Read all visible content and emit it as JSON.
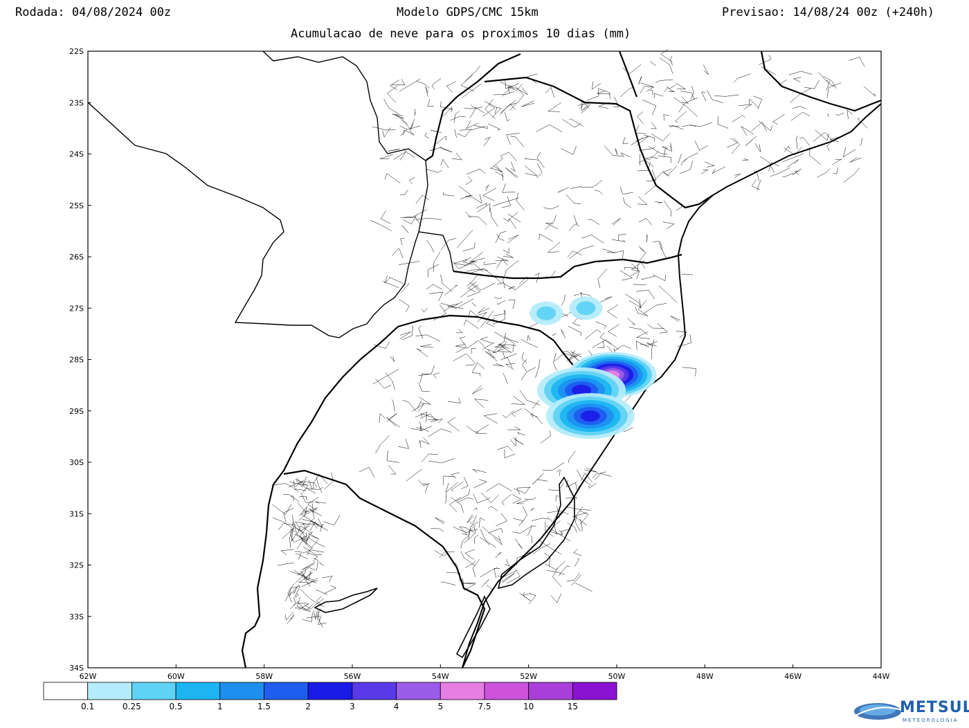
{
  "header": {
    "run": "Rodada: 04/08/2024 00z",
    "model": "Modelo GDPS/CMC 15km",
    "forecast": "Previsao: 14/08/24 00z (+240h)",
    "subtitle": "Acumulacao de neve para os proximos 10 dias (mm)"
  },
  "map": {
    "lat_labels": [
      "22S",
      "23S",
      "24S",
      "25S",
      "26S",
      "27S",
      "28S",
      "29S",
      "30S",
      "31S",
      "32S",
      "33S",
      "34S"
    ],
    "lon_labels": [
      "62W",
      "60W",
      "58W",
      "56W",
      "54W",
      "52W",
      "50W",
      "48W",
      "46W",
      "44W"
    ],
    "lat_range": [
      -34,
      -22
    ],
    "lon_range": [
      -62,
      -44
    ],
    "snow_areas": [
      {
        "lat": -27.1,
        "lon": -51.6,
        "value_mm": 0.25
      },
      {
        "lat": -27.0,
        "lon": -50.7,
        "value_mm": 0.25
      },
      {
        "lat": -28.3,
        "lon": -50.1,
        "value_mm": 5
      },
      {
        "lat": -28.6,
        "lon": -50.8,
        "value_mm": 2
      },
      {
        "lat": -29.1,
        "lon": -50.6,
        "value_mm": 2
      }
    ]
  },
  "legend": {
    "levels": [
      "0.1",
      "0.25",
      "0.5",
      "1",
      "1.5",
      "2",
      "3",
      "4",
      "5",
      "7.5",
      "10",
      "15"
    ],
    "colors": [
      "#ffffff",
      "#b5ecfb",
      "#5fd3f5",
      "#1cb5f2",
      "#1e8ff0",
      "#1f5cf0",
      "#1b1be8",
      "#5a3ae8",
      "#9b5ce8",
      "#e77ee4",
      "#cc52dc",
      "#a93ed8",
      "#8a12d2"
    ]
  },
  "logo": {
    "name": "METSUL",
    "sub": "METEOROLOGIA"
  }
}
